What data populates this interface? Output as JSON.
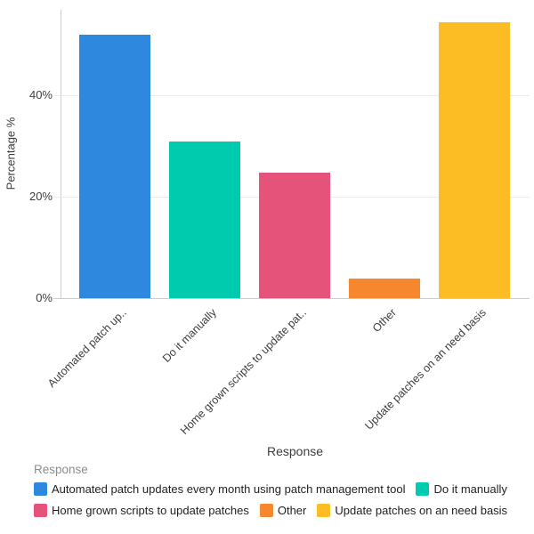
{
  "chart_data": {
    "type": "bar",
    "title": "",
    "xlabel": "Response",
    "ylabel": "Percentage %",
    "categories": [
      "Automated patch updates every month using patch management tool",
      "Do it manually",
      "Home grown scripts to update patches",
      "Other",
      "Update patches on an need basis"
    ],
    "x_tick_labels": [
      "Automated patch up..",
      "Do it manually",
      "Home grown scripts to update pat..",
      "Other",
      "Update patches on an need basis"
    ],
    "values": [
      51.9,
      30.8,
      24.8,
      3.8,
      54.4
    ],
    "unit": "%",
    "bar_colors": [
      "#2E88DD",
      "#00CBAE",
      "#E5527A",
      "#F6872F",
      "#FBBC24"
    ],
    "ytick_labels": [
      "0%",
      "20%",
      "40%"
    ],
    "ytick_values": [
      0,
      20,
      40
    ],
    "ylim": [
      0,
      56.8
    ],
    "grid": "horizontal-only",
    "legend": {
      "title": "Response",
      "position": "bottom",
      "items": [
        "Automated patch updates every month using patch management tool",
        "Do it manually",
        "Home grown scripts to update patches",
        "Other",
        "Update patches on an need basis"
      ]
    },
    "axis_colors": {
      "axis_line": "#cbcbcb",
      "gridline": "#ebebeb",
      "tick_text": "#3d3d3d",
      "legend_title_text": "#8d8d8d"
    }
  }
}
